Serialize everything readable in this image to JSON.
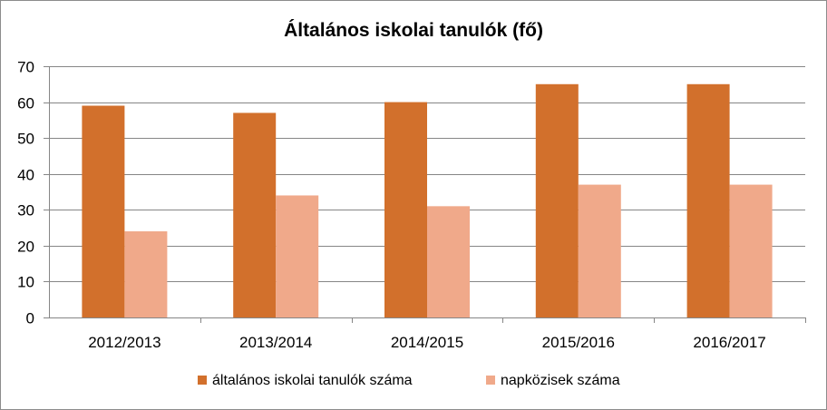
{
  "chart_data": {
    "type": "bar",
    "title": "Általános iskolai tanulók (fő)",
    "categories": [
      "2012/2013",
      "2013/2014",
      "2014/2015",
      "2015/2016",
      "2016/2017"
    ],
    "series": [
      {
        "name": "általános iskolai tanulók száma",
        "values": [
          59,
          57,
          60,
          65,
          65
        ],
        "color": "#d2702c"
      },
      {
        "name": "napközisek száma",
        "values": [
          24,
          34,
          31,
          37,
          37
        ],
        "color": "#f0a98a"
      }
    ],
    "ylim": [
      0,
      70
    ],
    "yticks": [
      0,
      10,
      20,
      30,
      40,
      50,
      60,
      70
    ],
    "grid": true,
    "legend": "bottom",
    "colors": {
      "grid": "#868686",
      "axis": "#868686"
    }
  }
}
